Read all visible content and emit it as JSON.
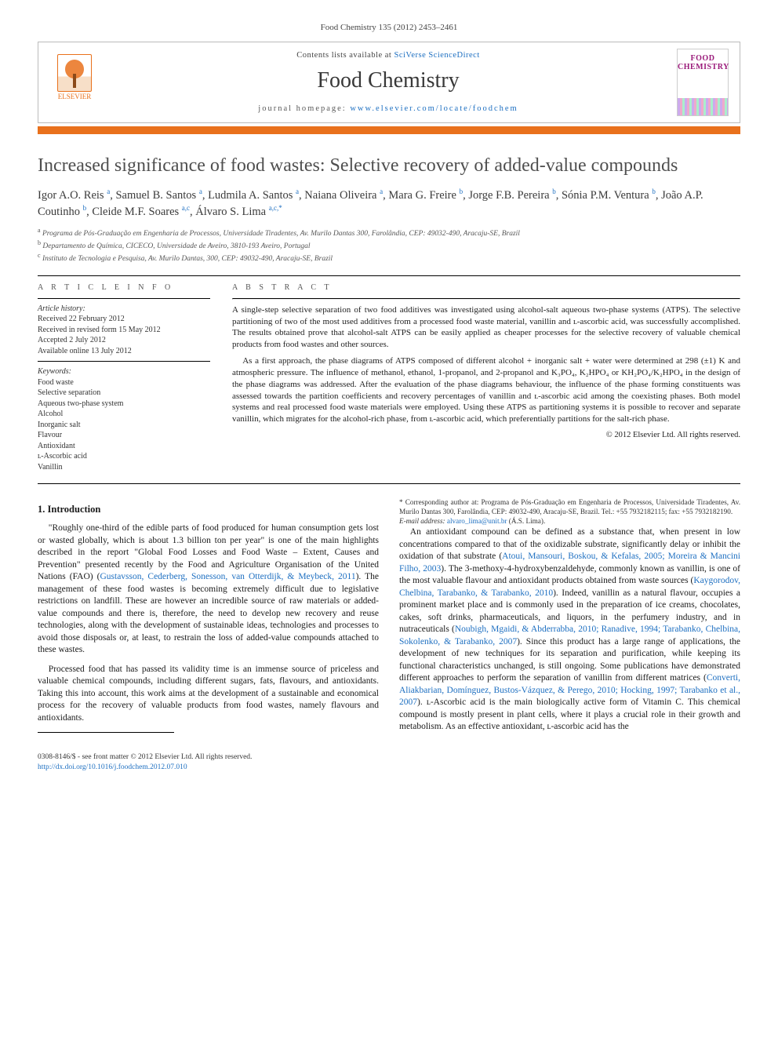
{
  "citation_line": "Food Chemistry 135 (2012) 2453–2461",
  "banner": {
    "contents_prefix": "Contents lists available at ",
    "contents_link": "SciVerse ScienceDirect",
    "journal_brand": "Food Chemistry",
    "homepage_prefix": "journal homepage: ",
    "homepage_url": "www.elsevier.com/locate/foodchem",
    "publisher_name": "ELSEVIER",
    "cover_text_top": "FOOD",
    "cover_text_bottom": "CHEMISTRY"
  },
  "title": "Increased significance of food wastes: Selective recovery of added-value compounds",
  "authors_html": "Igor A.O. Reis <sup>a</sup>, Samuel B. Santos <sup>a</sup>, Ludmila A. Santos <sup>a</sup>, Naiana Oliveira <sup>a</sup>, Mara G. Freire <sup>b</sup>, Jorge F.B. Pereira <sup>b</sup>, Sónia P.M. Ventura <sup>b</sup>, João A.P. Coutinho <sup>b</sup>, Cleide M.F. Soares <sup>a,c</sup>, Álvaro S. Lima <sup>a,c,*</sup>",
  "affiliations": [
    {
      "sup": "a",
      "text": "Programa de Pós-Graduação em Engenharia de Processos, Universidade Tiradentes, Av. Murilo Dantas 300, Farolândia, CEP: 49032-490, Aracaju-SE, Brazil"
    },
    {
      "sup": "b",
      "text": "Departamento de Química, CICECO, Universidade de Aveiro, 3810-193 Aveiro, Portugal"
    },
    {
      "sup": "c",
      "text": "Instituto de Tecnologia e Pesquisa, Av. Murilo Dantas, 300, CEP: 49032-490, Aracaju-SE, Brazil"
    }
  ],
  "info": {
    "title": "A R T I C L E   I N F O",
    "history_label": "Article history:",
    "history": [
      "Received 22 February 2012",
      "Received in revised form 15 May 2012",
      "Accepted 2 July 2012",
      "Available online 13 July 2012"
    ],
    "keywords_label": "Keywords:",
    "keywords": [
      "Food waste",
      "Selective separation",
      "Aqueous two-phase system",
      "Alcohol",
      "Inorganic salt",
      "Flavour",
      "Antioxidant",
      "ʟ-Ascorbic acid",
      "Vanillin"
    ]
  },
  "abstract": {
    "title": "A B S T R A C T",
    "paragraphs": [
      "A single-step selective separation of two food additives was investigated using alcohol-salt aqueous two-phase systems (ATPS). The selective partitioning of two of the most used additives from a processed food waste material, vanillin and ʟ-ascorbic acid, was successfully accomplished. The results obtained prove that alcohol-salt ATPS can be easily applied as cheaper processes for the selective recovery of valuable chemical products from food wastes and other sources.",
      "As a first approach, the phase diagrams of ATPS composed of different alcohol + inorganic salt + water were determined at 298 (±1) K and atmospheric pressure. The influence of methanol, ethanol, 1-propanol, and 2-propanol and K₃PO₄, K₂HPO₄ or KH₂PO₄/K₂HPO₄ in the design of the phase diagrams was addressed. After the evaluation of the phase diagrams behaviour, the influence of the phase forming constituents was assessed towards the partition coefficients and recovery percentages of vanillin and ʟ-ascorbic acid among the coexisting phases. Both model systems and real processed food waste materials were employed. Using these ATPS as partitioning systems it is possible to recover and separate vanillin, which migrates for the alcohol-rich phase, from ʟ-ascorbic acid, which preferentially partitions for the salt-rich phase."
    ],
    "copyright": "© 2012 Elsevier Ltd. All rights reserved."
  },
  "section1_heading": "1. Introduction",
  "paragraphs": {
    "p1_a": "\"Roughly one-third of the edible parts of food produced for human consumption gets lost or wasted globally, which is about 1.3 billion ton per year\" is one of the main highlights described in the report \"Global Food Losses and Food Waste – Extent, Causes and Prevention\" presented recently by the Food and Agriculture Organisation of the United Nations (FAO) (",
    "p1_ref": "Gustavsson, Cederberg, Sonesson, van Otterdijk, & Meybeck, 2011",
    "p1_b": "). The management of these food wastes is becoming extremely difficult due to legislative restrictions on landfill. These are however an incredible source of raw materials or added-value compounds and there is, therefore, the need to develop new recovery and reuse technologies, along with the development of sustainable ideas, technologies and processes to avoid those disposals or, at least, to restrain the loss of added-value compounds attached to these wastes.",
    "p2": "Processed food that has passed its validity time is an immense source of priceless and valuable chemical compounds, including different sugars, fats, flavours, and antioxidants. Taking this into account, this work aims at the development of a sustainable and economical process for the recovery of valuable products from food wastes, namely flavours and antioxidants.",
    "p3_a": "An antioxidant compound can be defined as a substance that, when present in low concentrations compared to that of the oxidizable substrate, significantly delay or inhibit the oxidation of that substrate (",
    "p3_ref1": "Atoui, Mansouri, Boskou, & Kefalas, 2005; Moreira & Mancini Filho, 2003",
    "p3_b": "). The 3-methoxy-4-hydroxybenzaldehyde, commonly known as vanillin, is one of the most valuable flavour and antioxidant products obtained from waste sources (",
    "p3_ref2": "Kaygorodov, Chelbina, Tarabanko, & Tarabanko, 2010",
    "p3_c": "). Indeed, vanillin as a natural flavour, occupies a prominent market place and is commonly used in the preparation of ice creams, chocolates, cakes, soft drinks, pharmaceuticals, and liquors, in the perfumery industry, and in nutraceuticals (",
    "p3_ref3": "Noubigh, Mgaidi, & Abderrabba, 2010; Ranadive, 1994; Tarabanko, Chelbina, Sokolenko, & Tarabanko, 2007",
    "p3_d": "). Since this product has a large range of applications, the development of new techniques for its separation and purification, while keeping its functional characteristics unchanged, is still ongoing. Some publications have demonstrated different approaches to perform the separation of vanillin from different matrices (",
    "p3_ref4": "Converti, Aliakbarian, Domínguez, Bustos-Vázquez, & Perego, 2010; Hocking, 1997; Tarabanko et al., 2007",
    "p3_e": "). ʟ-Ascorbic acid is the main biologically active form of Vitamin C. This chemical compound is mostly present in plant cells, where it plays a crucial role in their growth and metabolism. As an effective antioxidant, ʟ-ascorbic acid has the"
  },
  "footnote": {
    "corr_label": "* Corresponding author at: ",
    "corr_text": "Programa de Pós-Graduação em Engenharia de Processos, Universidade Tiradentes, Av. Murilo Dantas 300, Farolândia, CEP: 49032-490, Aracaju-SE, Brazil. Tel.: +55 7932182115; fax: +55 7932182190.",
    "email_label": "E-mail address: ",
    "email": "alvaro_lima@unit.br",
    "email_owner": " (Á.S. Lima)."
  },
  "bottom": {
    "line1": "0308-8146/$ - see front matter © 2012 Elsevier Ltd. All rights reserved.",
    "doi": "http://dx.doi.org/10.1016/j.foodchem.2012.07.010"
  },
  "colors": {
    "link": "#1d6fc1",
    "accent": "#e9711c",
    "text": "#1a1a1a"
  }
}
